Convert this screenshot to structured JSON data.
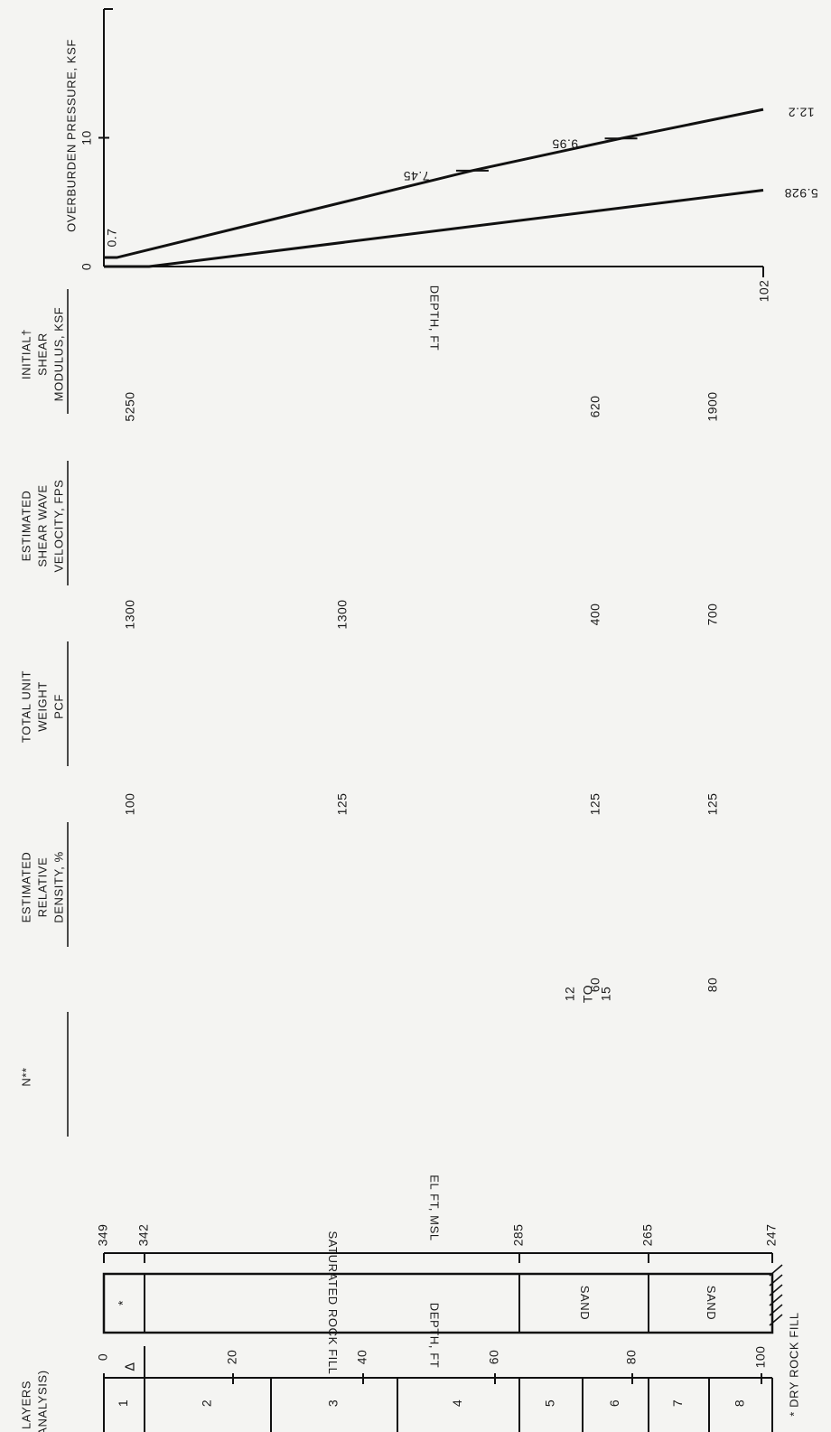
{
  "page": {
    "footnote": "* DRY ROCK FILL"
  },
  "depth_axis": {
    "label": "DEPTH, FT",
    "ticks": [
      "0",
      "20",
      "40",
      "60",
      "80",
      "100"
    ]
  },
  "layers_header": {
    "line1": "LAYERS",
    "line2": "(ANALYSIS)"
  },
  "layers": [
    "1",
    "2",
    "3",
    "4",
    "5",
    "6",
    "7",
    "8"
  ],
  "soil_column": {
    "asterisk": "*",
    "units": [
      {
        "label": "SATURATED ROCK FILL"
      },
      {
        "label": "SAND"
      },
      {
        "label": "SAND"
      }
    ],
    "water_table_symbol": "∇"
  },
  "elevation_axis": {
    "label": "EL FT, MSL",
    "values": [
      "349",
      "342",
      "285",
      "265",
      "247"
    ]
  },
  "properties": [
    {
      "key": "n",
      "header": [
        "N**"
      ],
      "values": [
        "",
        "",
        "12 TO 15",
        ""
      ]
    },
    {
      "key": "relative_density",
      "header": [
        "ESTIMATED",
        "RELATIVE",
        "DENSITY, %"
      ],
      "values": [
        "",
        "",
        "60",
        "80"
      ]
    },
    {
      "key": "unit_weight",
      "header": [
        "TOTAL UNIT",
        "WEIGHT",
        "PCF"
      ],
      "values": [
        "100",
        "125",
        "125",
        "125"
      ]
    },
    {
      "key": "shear_wave_velocity",
      "header": [
        "ESTIMATED",
        "SHEAR WAVE",
        "VELOCITY, FPS"
      ],
      "values": [
        "1300",
        "1300",
        "400",
        "700"
      ]
    },
    {
      "key": "shear_modulus",
      "header": [
        "INITIAL†",
        "SHEAR",
        "MODULUS, KSF"
      ],
      "values": [
        "5250",
        "",
        "620",
        "1900"
      ]
    }
  ],
  "chart_data": {
    "type": "line",
    "ylabel": "OVERBURDEN PRESSURE, KSF",
    "xlabel": "DEPTH, FT",
    "yticks": [
      "0",
      "10"
    ],
    "x_end_label": "102",
    "series": [
      {
        "x": [
          0,
          2,
          57,
          80,
          102
        ],
        "y": [
          0.7,
          0.7,
          7.45,
          9.95,
          12.2
        ]
      },
      {
        "x": [
          0,
          7,
          102
        ],
        "y": [
          0,
          0,
          5.928
        ]
      }
    ],
    "annotations": [
      "0.7",
      "7.45",
      "9.95",
      "12.2",
      "5.928"
    ],
    "xlim": [
      0,
      102
    ],
    "ylim": [
      0,
      20
    ]
  }
}
